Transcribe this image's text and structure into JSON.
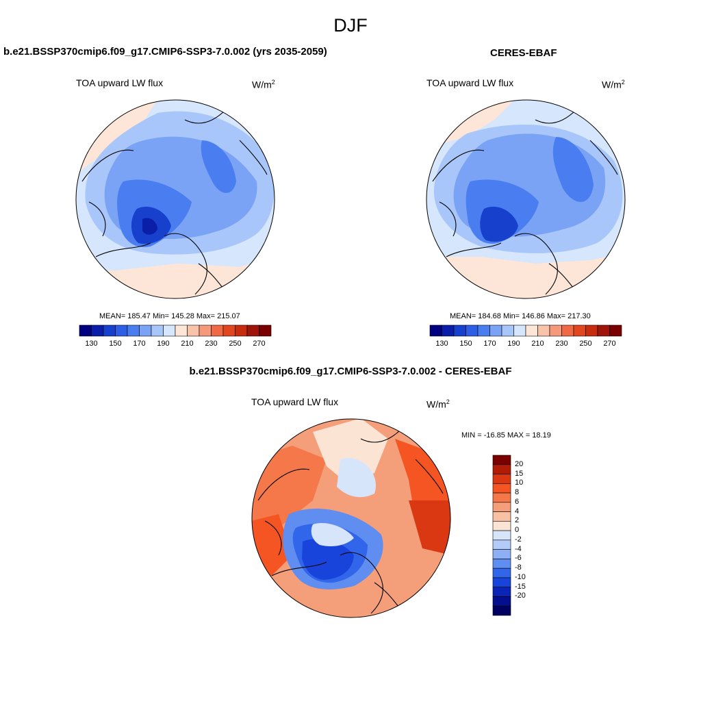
{
  "season": "DJF",
  "panels": {
    "model": {
      "title": "b.e21.BSSP370cmip6.f09_g17.CMIP6-SSP3-7.0.002 (yrs 2035-2059)",
      "variable": "TOA upward LW flux",
      "units_base": "W/m",
      "units_exp": "2",
      "stats": "MEAN= 185.47  Min= 145.28  Max= 215.07"
    },
    "obs": {
      "title": "CERES-EBAF",
      "variable": "TOA upward LW flux",
      "units_base": "W/m",
      "units_exp": "2",
      "stats": "MEAN= 184.68  Min= 146.86  Max= 217.30"
    },
    "diff": {
      "title": "b.e21.BSSP370cmip6.f09_g17.CMIP6-SSP3-7.0.002 - CERES-EBAF",
      "variable": "TOA upward LW flux",
      "units_base": "W/m",
      "units_exp": "2",
      "stats": "MIN = -16.85 MAX =  18.19"
    }
  },
  "abs_colorbar": {
    "colors": [
      "#000080",
      "#0a1ea8",
      "#1740cc",
      "#2e5ee6",
      "#4a7ef0",
      "#7aa3f5",
      "#a9c6fa",
      "#d6e6fc",
      "#fde6d8",
      "#f8c3a8",
      "#f49a7a",
      "#ef6a44",
      "#e2461f",
      "#c72b10",
      "#a0150a",
      "#7a0000"
    ],
    "tick_labels": [
      "130",
      "150",
      "170",
      "190",
      "210",
      "230",
      "250",
      "270"
    ]
  },
  "diff_colorbar": {
    "colors": [
      "#7a0000",
      "#b01c06",
      "#d93812",
      "#f45522",
      "#f4784a",
      "#f59e7a",
      "#f8c1a4",
      "#fce4d4",
      "#d7e5fb",
      "#b3cbf8",
      "#8db0f5",
      "#5f8ef0",
      "#3266ea",
      "#1844db",
      "#0a24b5",
      "#030f8c",
      "#000060"
    ],
    "tick_labels": [
      "20",
      "15",
      "10",
      "8",
      "6",
      "4",
      "2",
      "0",
      "-2",
      "-4",
      "-6",
      "-8",
      "-10",
      "-15",
      "-20"
    ]
  }
}
